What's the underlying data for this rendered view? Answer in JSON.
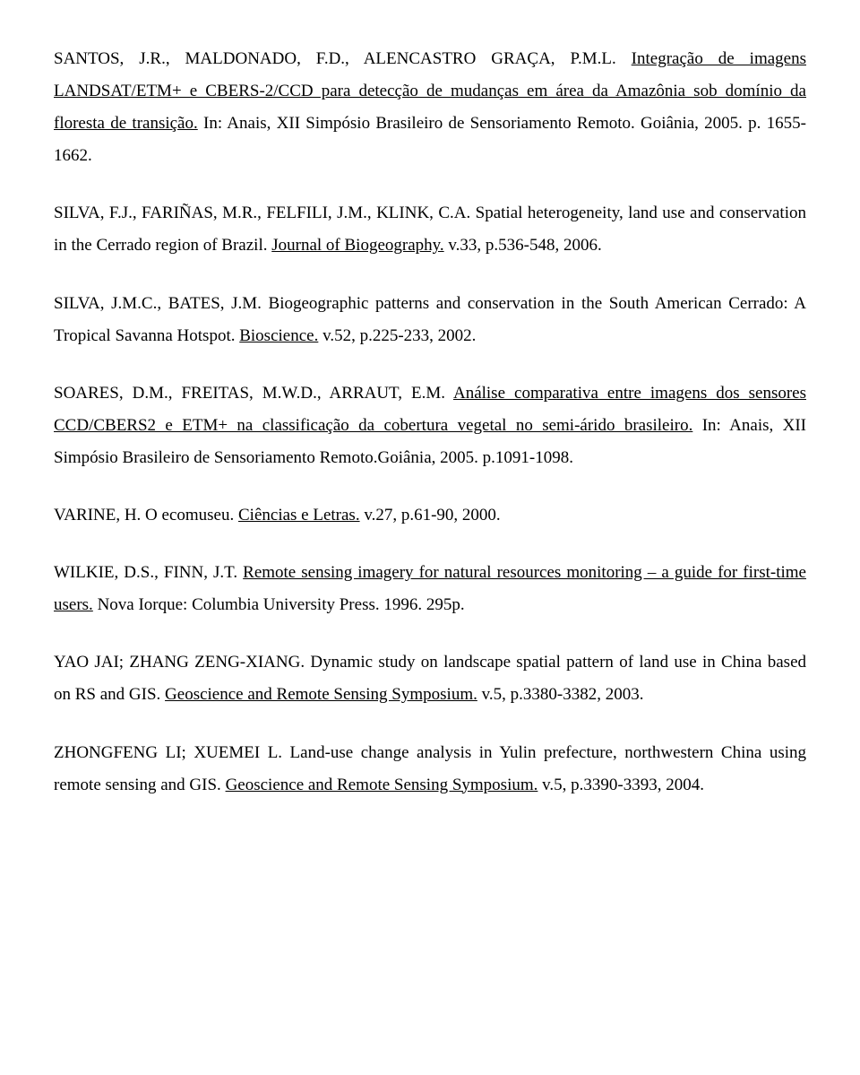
{
  "refs": [
    {
      "pre": "SANTOS, J.R., MALDONADO, F.D., ALENCASTRO GRAÇA, P.M.L. ",
      "u": "Integração de imagens LANDSAT/ETM+ e CBERS-2/CCD para detecção de mudanças em área da Amazônia sob domínio da floresta de transição.",
      "post": " In: Anais, XII Simpósio Brasileiro de Sensoriamento Remoto. Goiânia, 2005. p. 1655-1662."
    },
    {
      "pre": "SILVA, F.J., FARIÑAS, M.R., FELFILI, J.M., KLINK, C.A. Spatial heterogeneity, land use and conservation in the Cerrado region of Brazil. ",
      "u": "Journal of Biogeography.",
      "post": " v.33, p.536-548, 2006."
    },
    {
      "pre": "SILVA, J.M.C., BATES, J.M. Biogeographic patterns and conservation in the South American Cerrado: A Tropical Savanna Hotspot. ",
      "u": "Bioscience.",
      "post": " v.52, p.225-233, 2002."
    },
    {
      "pre": "SOARES, D.M., FREITAS, M.W.D., ARRAUT, E.M. ",
      "u": "Análise comparativa entre imagens dos sensores CCD/CBERS2 e ETM+ na classificação da cobertura vegetal no semi-árido brasileiro.",
      "post": " In: Anais, XII Simpósio Brasileiro de Sensoriamento Remoto.Goiânia, 2005. p.1091-1098."
    },
    {
      "pre": "VARINE, H. O ecomuseu. ",
      "u": "Ciências e Letras.",
      "post": " v.27, p.61-90, 2000."
    },
    {
      "pre": "WILKIE, D.S., FINN, J.T. ",
      "u": "Remote sensing imagery for natural resources monitoring – a guide for first-time users.",
      "post": " Nova Iorque: Columbia University Press. 1996. 295p."
    },
    {
      "pre": "YAO JAI; ZHANG ZENG-XIANG. Dynamic study on landscape spatial pattern of land use in China based on RS and GIS. ",
      "u": "Geoscience and Remote Sensing Symposium.",
      "post": " v.5, p.3380-3382, 2003."
    },
    {
      "pre": "ZHONGFENG LI; XUEMEI L. Land-use change analysis in Yulin prefecture, northwestern China using remote sensing and GIS. ",
      "u": "Geoscience and Remote Sensing Symposium.",
      "post": " v.5, p.3390-3393, 2004."
    }
  ]
}
